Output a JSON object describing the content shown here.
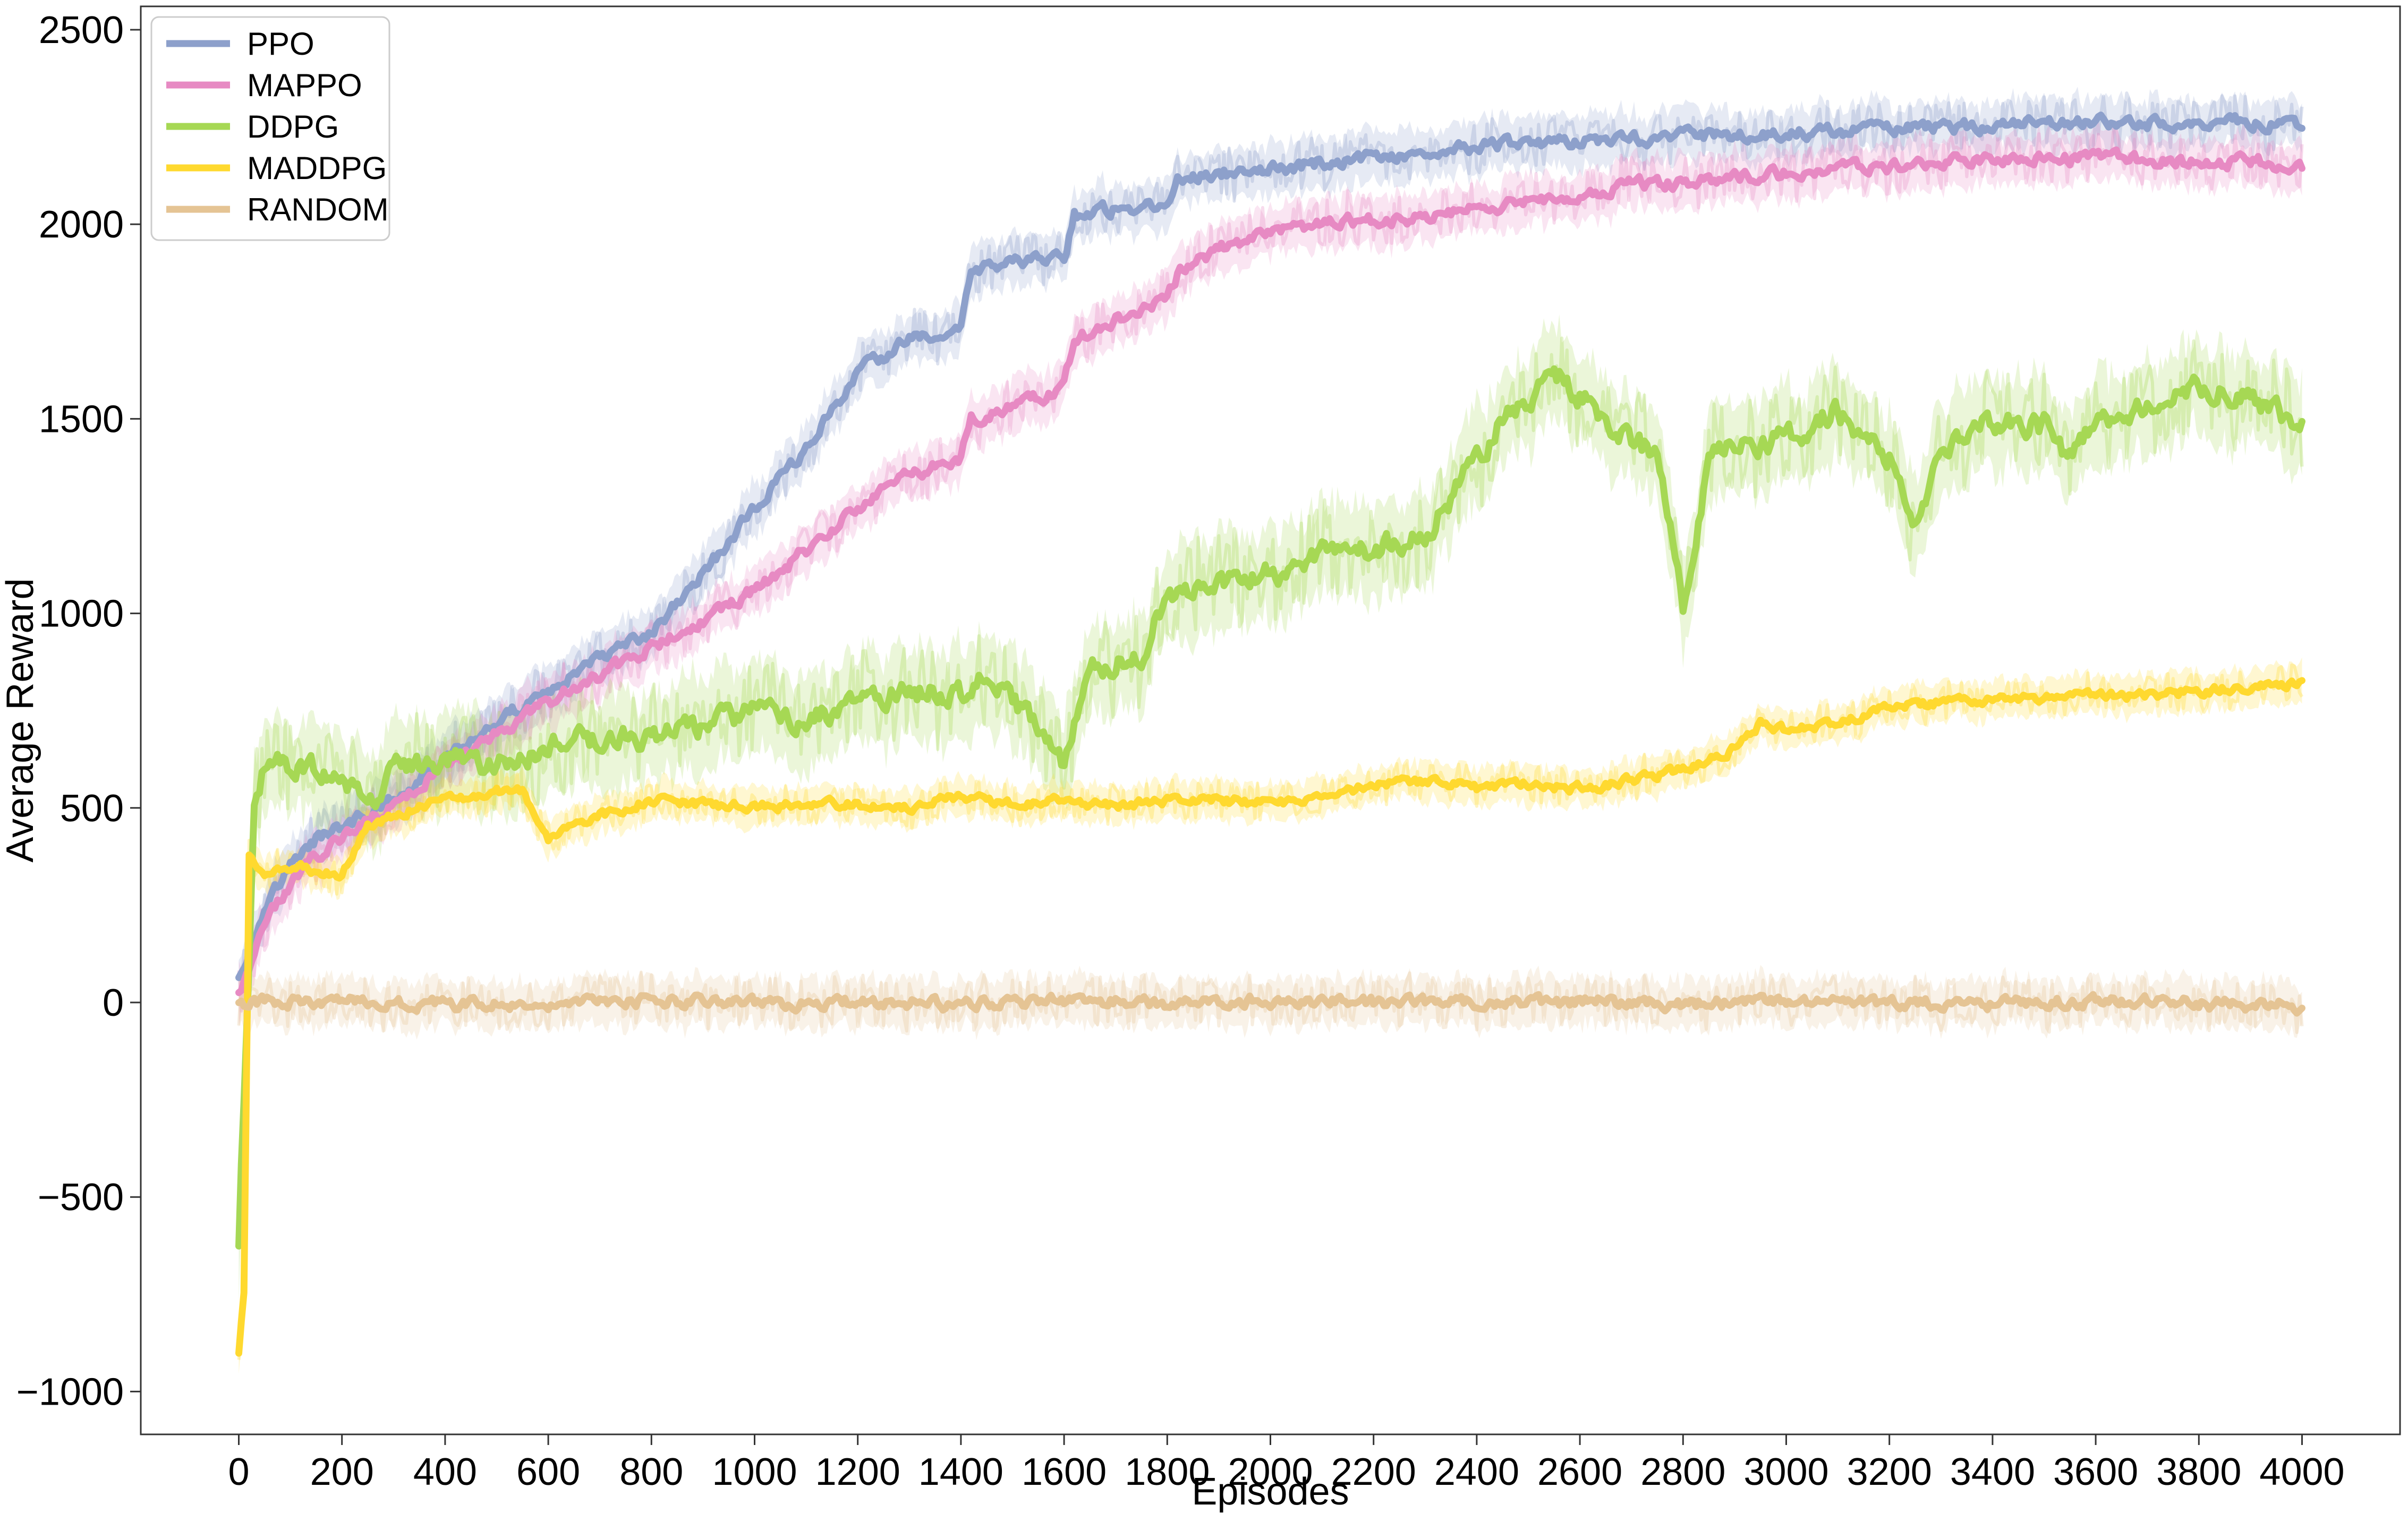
{
  "chart_data": {
    "type": "line",
    "title": "",
    "xlabel": "Episodes",
    "ylabel": "Average Reward",
    "xlim": [
      -190,
      4190
    ],
    "ylim": [
      -1110,
      2560
    ],
    "xticks": [
      0,
      200,
      400,
      600,
      800,
      1000,
      1200,
      1400,
      1600,
      1800,
      2000,
      2200,
      2400,
      2600,
      2800,
      3000,
      3200,
      3400,
      3600,
      3800,
      4000
    ],
    "yticks": [
      -1000,
      -500,
      0,
      500,
      1000,
      1500,
      2000,
      2500
    ],
    "grid": false,
    "legend_position": "upper-left",
    "series": [
      {
        "name": "PPO",
        "color": "#8DA0CB",
        "x": [
          0,
          25,
          50,
          100,
          150,
          200,
          300,
          400,
          500,
          600,
          700,
          800,
          900,
          1000,
          1100,
          1200,
          1250,
          1300,
          1400,
          1420,
          1500,
          1600,
          1620,
          1700,
          1800,
          1820,
          1900,
          2000,
          2100,
          2200,
          2300,
          2400,
          2500,
          2600,
          2700,
          2800,
          2900,
          3000,
          3100,
          3200,
          3300,
          3400,
          3500,
          3600,
          3700,
          3800,
          3900,
          4000
        ],
        "y": [
          70,
          150,
          250,
          350,
          420,
          450,
          520,
          620,
          720,
          800,
          880,
          950,
          1100,
          1270,
          1420,
          1620,
          1660,
          1700,
          1740,
          1880,
          1900,
          1910,
          2020,
          2040,
          2060,
          2110,
          2130,
          2140,
          2160,
          2170,
          2180,
          2200,
          2210,
          2215,
          2220,
          2230,
          2230,
          2235,
          2240,
          2245,
          2250,
          2255,
          2258,
          2260,
          2262,
          2265,
          2262,
          2260
        ]
      },
      {
        "name": "MAPPO",
        "color": "#E78AC3",
        "x": [
          0,
          25,
          50,
          100,
          150,
          200,
          300,
          400,
          500,
          600,
          700,
          800,
          900,
          1000,
          1100,
          1200,
          1300,
          1400,
          1420,
          1500,
          1600,
          1620,
          1700,
          1800,
          1820,
          1900,
          2000,
          2100,
          2200,
          2300,
          2400,
          2500,
          2600,
          2700,
          2800,
          2900,
          3000,
          3100,
          3200,
          3300,
          3400,
          3500,
          3600,
          3700,
          3800,
          3900,
          4000
        ],
        "y": [
          30,
          100,
          200,
          300,
          380,
          420,
          510,
          610,
          690,
          770,
          840,
          910,
          980,
          1060,
          1160,
          1270,
          1360,
          1400,
          1500,
          1530,
          1580,
          1700,
          1760,
          1800,
          1870,
          1940,
          1980,
          2000,
          2010,
          2020,
          2040,
          2060,
          2080,
          2100,
          2110,
          2120,
          2130,
          2140,
          2150,
          2160,
          2165,
          2170,
          2170,
          2165,
          2160,
          2160,
          2150
        ]
      },
      {
        "name": "DDPG",
        "color": "#A6D854",
        "x": [
          0,
          30,
          60,
          100,
          150,
          200,
          250,
          300,
          400,
          500,
          600,
          700,
          800,
          900,
          1000,
          1100,
          1200,
          1300,
          1400,
          1450,
          1500,
          1550,
          1600,
          1650,
          1700,
          1750,
          1800,
          1900,
          2000,
          2100,
          2200,
          2300,
          2400,
          2450,
          2500,
          2550,
          2600,
          2700,
          2750,
          2800,
          2850,
          2900,
          3000,
          3100,
          3200,
          3250,
          3300,
          3400,
          3500,
          3550,
          3600,
          3650,
          3700,
          3800,
          3900,
          4000
        ],
        "y": [
          -620,
          500,
          650,
          600,
          600,
          590,
          500,
          600,
          620,
          610,
          650,
          680,
          680,
          710,
          750,
          720,
          770,
          800,
          790,
          830,
          780,
          700,
          600,
          850,
          880,
          900,
          1050,
          1080,
          1100,
          1150,
          1170,
          1200,
          1400,
          1500,
          1550,
          1620,
          1560,
          1450,
          1400,
          1020,
          1400,
          1430,
          1450,
          1520,
          1400,
          1230,
          1420,
          1500,
          1480,
          1400,
          1500,
          1480,
          1550,
          1580,
          1560,
          1480
        ]
      },
      {
        "name": "MADDPG",
        "color": "#FFD92F",
        "x": [
          0,
          10,
          20,
          30,
          50,
          100,
          150,
          200,
          250,
          300,
          400,
          500,
          550,
          600,
          700,
          800,
          900,
          1000,
          1100,
          1200,
          1300,
          1400,
          1450,
          1500,
          1600,
          1700,
          1800,
          1900,
          2000,
          2100,
          2200,
          2300,
          2400,
          2500,
          2600,
          2700,
          2800,
          2900,
          2950,
          3000,
          3100,
          3200,
          3300,
          3400,
          3500,
          3600,
          3700,
          3800,
          3900,
          4000
        ],
        "y": [
          -900,
          -750,
          380,
          350,
          330,
          350,
          340,
          330,
          450,
          480,
          520,
          540,
          540,
          420,
          480,
          520,
          510,
          500,
          510,
          510,
          500,
          530,
          520,
          510,
          520,
          500,
          520,
          520,
          510,
          530,
          560,
          570,
          550,
          560,
          550,
          570,
          600,
          650,
          720,
          700,
          720,
          760,
          770,
          780,
          780,
          790,
          790,
          800,
          810,
          820
        ]
      },
      {
        "name": "RANDOM",
        "color": "#E5C494",
        "x": [
          0,
          200,
          400,
          600,
          800,
          1000,
          1200,
          1400,
          1600,
          1800,
          2000,
          2200,
          2400,
          2600,
          2800,
          3000,
          3200,
          3400,
          3600,
          3800,
          4000
        ],
        "y": [
          0,
          5,
          -5,
          0,
          5,
          -3,
          2,
          -4,
          3,
          -2,
          4,
          0,
          -3,
          2,
          -5,
          3,
          0,
          -2,
          4,
          -3,
          -10
        ]
      }
    ]
  }
}
